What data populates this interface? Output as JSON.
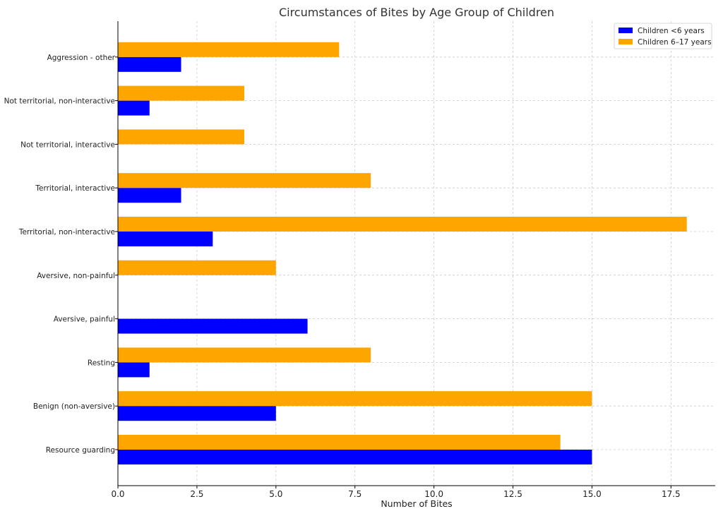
{
  "chart_data": {
    "type": "bar",
    "orientation": "horizontal",
    "title": "Circumstances of Bites by Age Group of Children",
    "xlabel": "Number of Bites",
    "ylabel": "",
    "categories": [
      "Resource guarding",
      "Benign (non-aversive)",
      "Resting",
      "Aversive, painful",
      "Aversive, non-painful",
      "Territorial, non-interactive",
      "Territorial, interactive",
      "Not territorial, interactive",
      "Not territorial, non-interactive",
      "Aggression - other"
    ],
    "series": [
      {
        "name": "Children <6 years",
        "color": "#0000ff",
        "values": [
          15,
          5,
          1,
          6,
          0,
          3,
          2,
          0,
          1,
          2
        ]
      },
      {
        "name": "Children 6–17 years",
        "color": "#ffa500",
        "values": [
          14,
          15,
          8,
          0,
          5,
          18,
          8,
          4,
          4,
          7
        ]
      }
    ],
    "xlim": [
      0,
      18.9
    ],
    "xticks": [
      "0.0",
      "2.5",
      "5.0",
      "7.5",
      "10.0",
      "12.5",
      "15.0",
      "17.5"
    ],
    "grid": true,
    "legend_position": "top-right"
  }
}
